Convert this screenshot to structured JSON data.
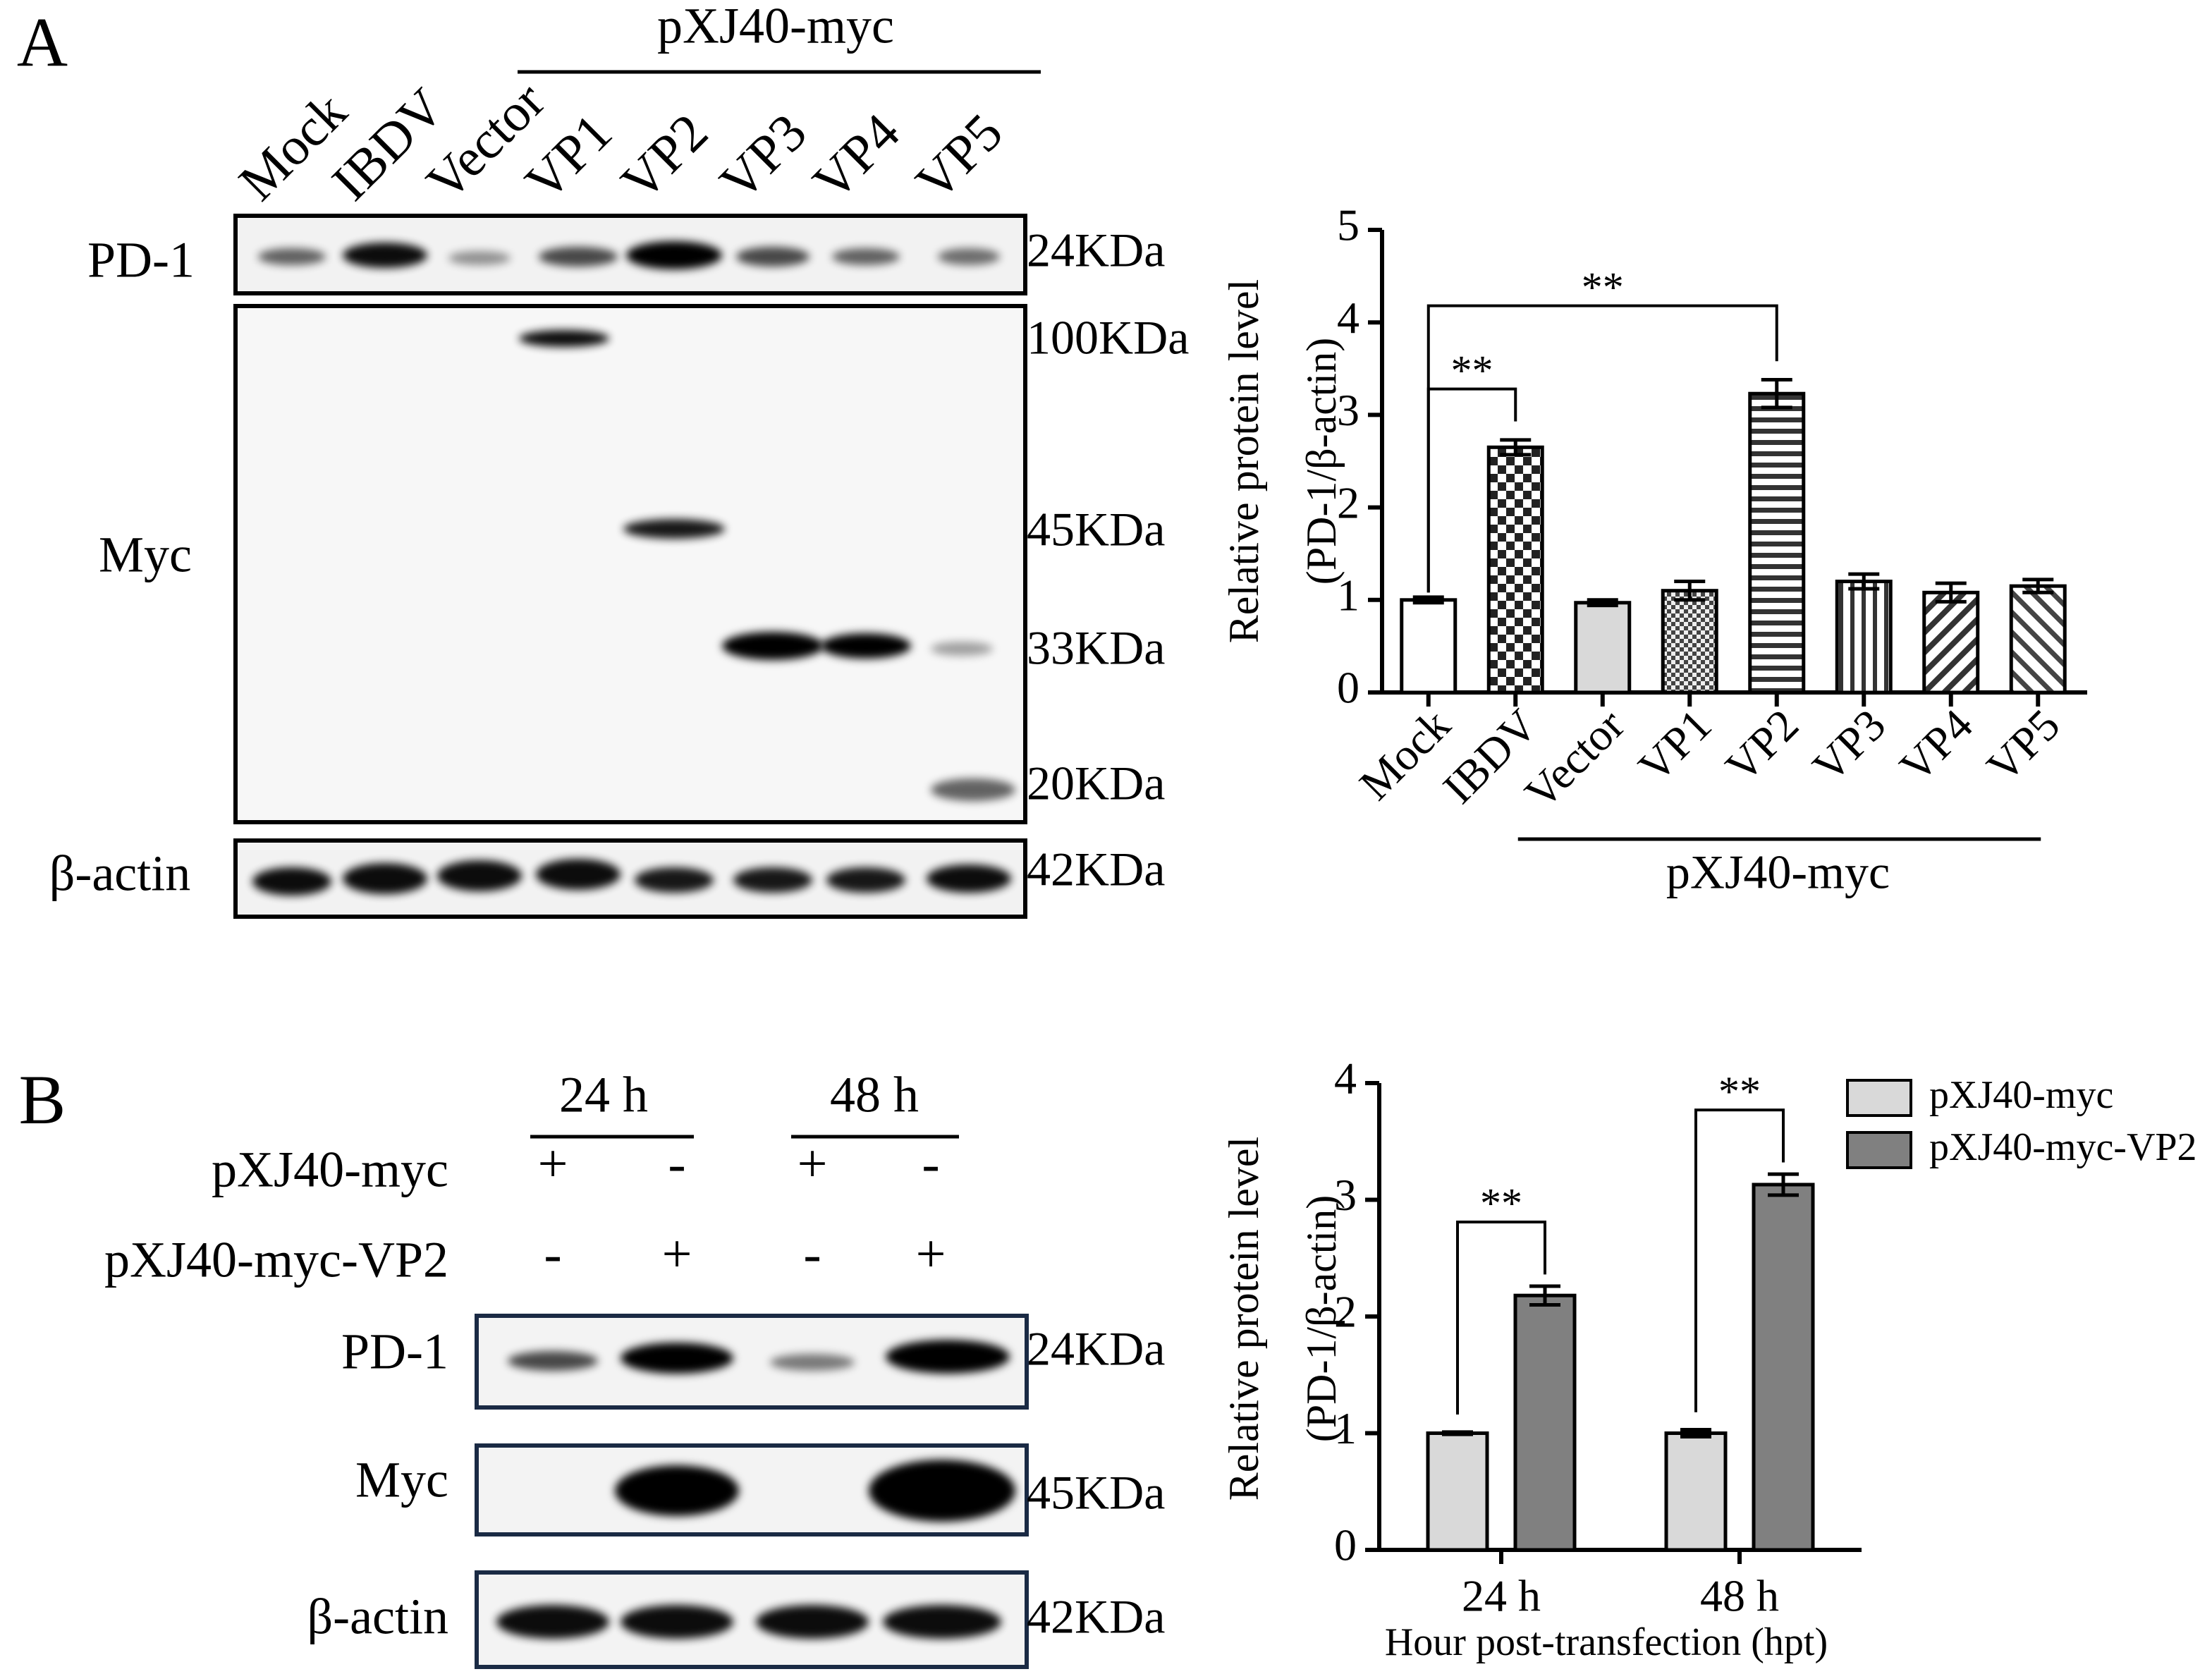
{
  "panel_a": {
    "label": "A",
    "group_label": "pXJ40-myc",
    "lanes": [
      "Mock",
      "IBDV",
      "Vector",
      "VP1",
      "VP2",
      "VP3",
      "VP4",
      "VP5"
    ],
    "blots": [
      {
        "name": "PD-1",
        "markers": [
          "24KDa"
        ]
      },
      {
        "name": "Myc",
        "markers": [
          "100KDa",
          "45KDa",
          "33KDa",
          "20KDa"
        ]
      },
      {
        "name": "β-actin",
        "markers": [
          "42KDa"
        ]
      }
    ]
  },
  "panel_b": {
    "label": "B",
    "times": [
      "24 h",
      "48 h"
    ],
    "rows": [
      {
        "name": "pXJ40-myc",
        "signs": [
          "+",
          "-",
          "+",
          "-"
        ]
      },
      {
        "name": "pXJ40-myc-VP2",
        "signs": [
          "-",
          "+",
          "-",
          "+"
        ]
      }
    ],
    "blots": [
      {
        "name": "PD-1",
        "markers": [
          "24KDa"
        ]
      },
      {
        "name": "Myc",
        "markers": [
          "45KDa"
        ]
      },
      {
        "name": "β-actin",
        "markers": [
          "42KDa"
        ]
      }
    ]
  },
  "chart_data": [
    {
      "type": "bar",
      "y_label": [
        "Relative protein level",
        "(PD-1/β-actin)"
      ],
      "categories": [
        "Mock",
        "IBDV",
        "Vector",
        "VP1",
        "VP2",
        "VP3",
        "VP4",
        "VP5"
      ],
      "values": [
        1.0,
        2.65,
        0.97,
        1.1,
        3.23,
        1.2,
        1.08,
        1.15
      ],
      "errors": [
        0.03,
        0.08,
        0.03,
        0.1,
        0.15,
        0.08,
        0.1,
        0.07
      ],
      "colors": [
        "#ffffff",
        "#ffffff",
        "#d9d9d9",
        "#ffffff",
        "#ffffff",
        "#ffffff",
        "#ffffff",
        "#ffffff"
      ],
      "patterns": [
        null,
        "checker",
        null,
        "checker-fine",
        "hstripe",
        "vstripe",
        "diag",
        "diag2"
      ],
      "ylim": [
        0,
        5
      ],
      "yticks": [
        0,
        1,
        2,
        3,
        4,
        5
      ],
      "annotations": [
        {
          "text": "**",
          "from": 0,
          "to": 1
        },
        {
          "text": "**",
          "from": 0,
          "to": 4
        }
      ],
      "group": {
        "label": "pXJ40-myc",
        "from": 2,
        "to": 7
      }
    },
    {
      "type": "bar",
      "y_label": [
        "Relative protein level",
        "(PD-1/β-actin)"
      ],
      "x_label": "Hour post-transfection (hpt)",
      "categories": [
        "24 h",
        "48 h"
      ],
      "series": [
        {
          "name": "pXJ40-myc",
          "color": "#d9d9d9",
          "values": [
            1.0,
            1.0
          ],
          "errors": [
            0.01,
            0.03
          ]
        },
        {
          "name": "pXJ40-myc-VP2",
          "color": "#808080",
          "values": [
            2.18,
            3.13
          ],
          "errors": [
            0.08,
            0.09
          ]
        }
      ],
      "ylim": [
        0,
        4
      ],
      "yticks": [
        0,
        1,
        2,
        3,
        4
      ],
      "legend": "top-right",
      "annotations": [
        {
          "text": "**",
          "category": 0
        },
        {
          "text": "**",
          "category": 1
        }
      ]
    }
  ]
}
